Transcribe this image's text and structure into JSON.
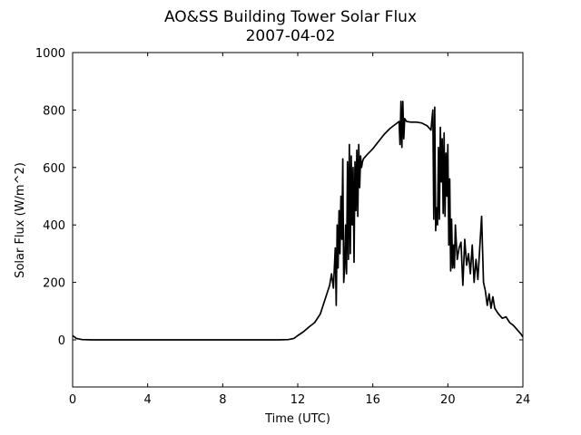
{
  "chart_data": {
    "type": "line",
    "title": "AO&SS Building Tower Solar Flux",
    "subtitle": "2007-04-02",
    "x_label": "Time (UTC)",
    "y_label": "Solar Flux (W/m^2)",
    "x": [
      0,
      0.2,
      0.5,
      1,
      2,
      3,
      4,
      5,
      6,
      7,
      8,
      9,
      10,
      11,
      11.5,
      11.8,
      12,
      12.3,
      12.6,
      12.9,
      13.2,
      13.5,
      13.7,
      13.8,
      13.9,
      14.0,
      14.05,
      14.1,
      14.15,
      14.2,
      14.25,
      14.3,
      14.35,
      14.4,
      14.45,
      14.5,
      14.55,
      14.6,
      14.65,
      14.7,
      14.75,
      14.8,
      14.85,
      14.9,
      14.95,
      15.0,
      15.05,
      15.1,
      15.15,
      15.2,
      15.25,
      15.3,
      15.35,
      15.4,
      15.45,
      15.5,
      15.7,
      16,
      16.3,
      16.6,
      16.9,
      17.2,
      17.4,
      17.45,
      17.5,
      17.55,
      17.6,
      17.65,
      17.7,
      17.8,
      18,
      18.3,
      18.6,
      18.9,
      19.1,
      19.2,
      19.25,
      19.3,
      19.35,
      19.4,
      19.45,
      19.5,
      19.55,
      19.6,
      19.65,
      19.7,
      19.75,
      19.8,
      19.85,
      19.9,
      19.95,
      20,
      20.05,
      20.1,
      20.15,
      20.2,
      20.25,
      20.3,
      20.35,
      20.4,
      20.5,
      20.6,
      20.7,
      20.8,
      20.9,
      21,
      21.1,
      21.2,
      21.3,
      21.4,
      21.5,
      21.6,
      21.7,
      21.8,
      21.9,
      22,
      22.1,
      22.2,
      22.3,
      22.4,
      22.5,
      22.7,
      22.9,
      23.1,
      23.3,
      23.5,
      23.7,
      23.9,
      24
    ],
    "series": [
      {
        "name": "Solar Flux",
        "color": "#000000",
        "values": [
          15,
          5,
          1,
          0,
          0,
          0,
          0,
          0,
          0,
          0,
          0,
          0,
          0,
          0,
          1,
          5,
          15,
          28,
          45,
          60,
          90,
          150,
          190,
          230,
          180,
          320,
          120,
          400,
          250,
          450,
          300,
          500,
          350,
          630,
          200,
          250,
          400,
          230,
          620,
          280,
          680,
          300,
          640,
          400,
          600,
          270,
          620,
          450,
          660,
          430,
          680,
          530,
          640,
          600,
          620,
          630,
          645,
          665,
          690,
          715,
          735,
          750,
          760,
          680,
          830,
          670,
          830,
          700,
          770,
          760,
          758,
          758,
          755,
          745,
          730,
          800,
          420,
          810,
          380,
          460,
          400,
          670,
          420,
          740,
          550,
          700,
          440,
          720,
          430,
          650,
          500,
          680,
          330,
          560,
          240,
          420,
          250,
          330,
          250,
          400,
          280,
          320,
          340,
          190,
          350,
          260,
          300,
          230,
          330,
          200,
          280,
          210,
          320,
          430,
          200,
          170,
          120,
          160,
          110,
          150,
          110,
          90,
          75,
          80,
          60,
          50,
          35,
          20,
          10
        ]
      }
    ],
    "xlim": [
      0,
      24
    ],
    "xticks": [
      0,
      4,
      8,
      12,
      16,
      20,
      24
    ],
    "ylim": [
      -164,
      1000
    ],
    "yticks": [
      0,
      200,
      400,
      600,
      800,
      1000
    ],
    "grid": false
  }
}
